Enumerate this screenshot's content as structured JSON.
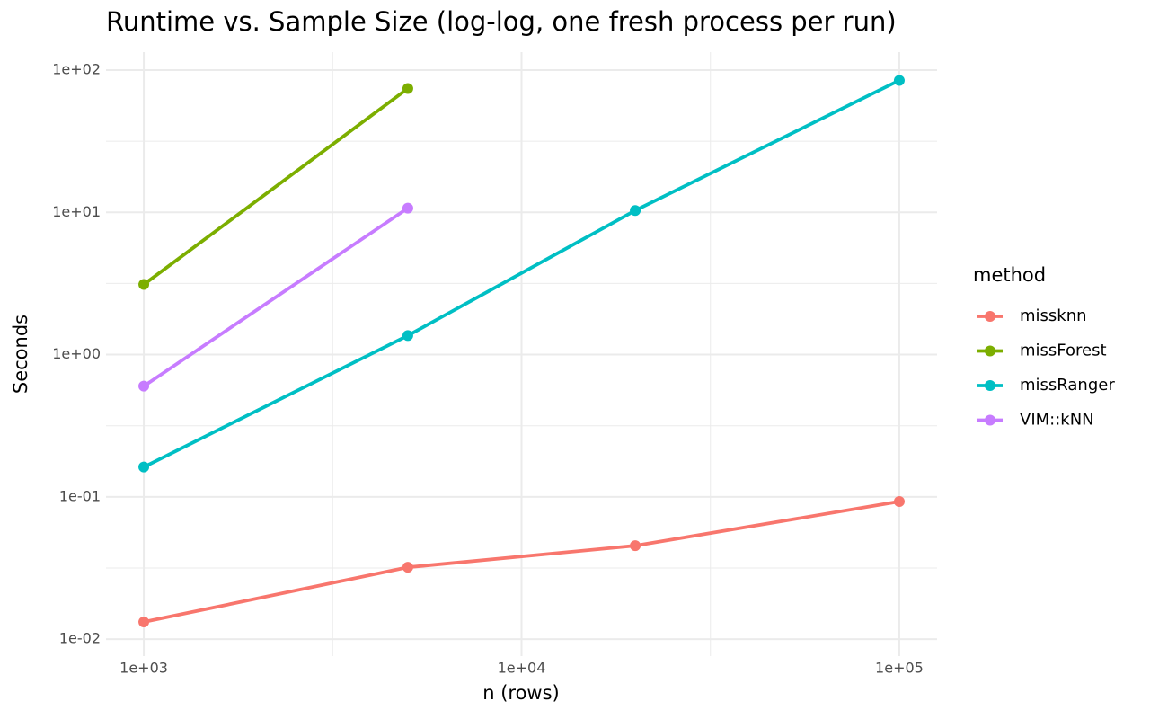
{
  "chart_data": {
    "type": "line",
    "title": "Runtime vs. Sample Size (log-log, one fresh process per run)",
    "x_label": "n (rows)",
    "y_label": "Seconds",
    "legend_title": "method",
    "legend": "right",
    "xscale": "log",
    "yscale": "log",
    "grid": true,
    "xlim": [
      794.3,
      125892.5
    ],
    "ylim": [
      0.0076,
      133.7
    ],
    "xticks": [
      {
        "value": 1000,
        "label": "1e+03"
      },
      {
        "value": 10000,
        "label": "1e+04"
      },
      {
        "value": 100000,
        "label": "1e+05"
      }
    ],
    "yticks": [
      {
        "value": 0.01,
        "label": "1e-02"
      },
      {
        "value": 0.1,
        "label": "1e-01"
      },
      {
        "value": 1,
        "label": "1e+00"
      },
      {
        "value": 10,
        "label": "1e+01"
      },
      {
        "value": 100,
        "label": "1e+02"
      }
    ],
    "series": [
      {
        "name": "missknn",
        "color": "#F8766D",
        "x": [
          1000,
          5000,
          20000,
          100000
        ],
        "values": [
          0.0132,
          0.032,
          0.0454,
          0.0927
        ]
      },
      {
        "name": "missForest",
        "color": "#7CAE00",
        "x": [
          1000,
          5000
        ],
        "values": [
          3.11,
          74.2
        ]
      },
      {
        "name": "missRanger",
        "color": "#00BFC4",
        "x": [
          1000,
          5000,
          20000,
          100000
        ],
        "values": [
          0.162,
          1.36,
          10.3,
          84.6
        ]
      },
      {
        "name": "VIM::kNN",
        "color": "#C77CFF",
        "x": [
          1000,
          5000
        ],
        "values": [
          0.6,
          10.7
        ]
      }
    ]
  }
}
